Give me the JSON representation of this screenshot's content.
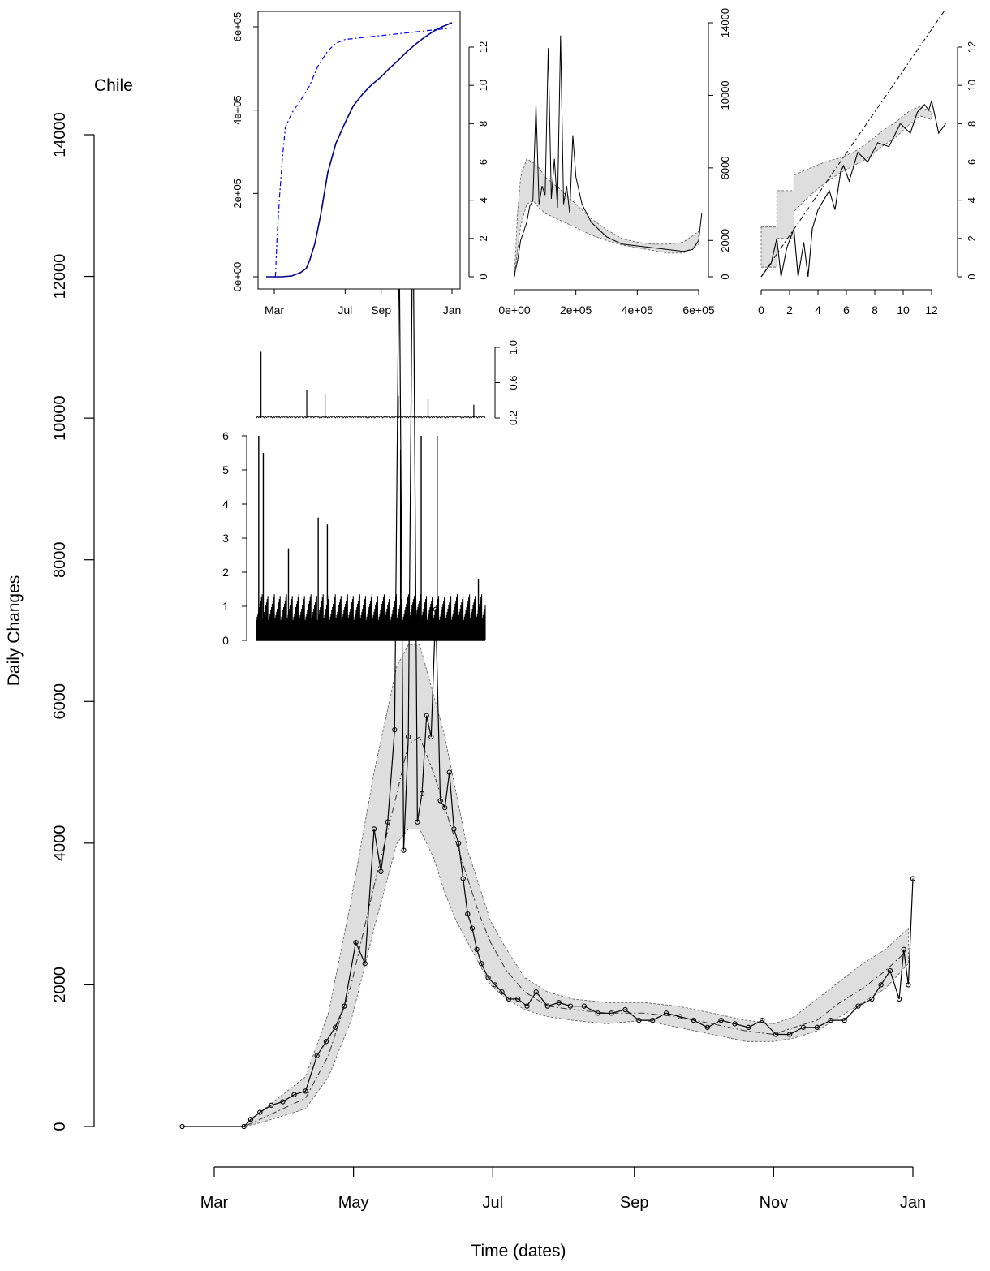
{
  "colors": {
    "background": "#ffffff",
    "axes": "#000000",
    "band_fill": "#dedede",
    "cumulative_line": "#00008b",
    "cumulative_ratio_line": "#0000ff"
  },
  "chart_data": [
    {
      "id": "main",
      "type": "scatter",
      "title": "Chile",
      "xlabel": "Time (dates)",
      "ylabel": "Daily Changes",
      "ylim": [
        0,
        14000
      ],
      "y_ticks": [
        "0",
        "2000",
        "4000",
        "6000",
        "8000",
        "10000",
        "12000",
        "14000"
      ],
      "x_ticks": [
        "Mar",
        "May",
        "Jul",
        "Sep",
        "Nov",
        "Jan"
      ],
      "x_tick_dates": [
        "2020-03-01",
        "2020-05-01",
        "2020-07-01",
        "2020-09-01",
        "2020-11-01",
        "2021-01-01"
      ],
      "xlim": [
        "2020-02-16",
        "2021-01-01"
      ],
      "grid": false,
      "series": [
        {
          "kind": "observed daily changes (points joined by line)",
          "x": [
            "2020-02-16",
            "2020-03-14",
            "2020-03-17",
            "2020-03-21",
            "2020-03-26",
            "2020-03-31",
            "2020-04-05",
            "2020-04-10",
            "2020-04-15",
            "2020-04-19",
            "2020-04-23",
            "2020-04-27",
            "2020-05-02",
            "2020-05-06",
            "2020-05-10",
            "2020-05-13",
            "2020-05-16",
            "2020-05-19",
            "2020-05-21",
            "2020-05-23",
            "2020-05-25",
            "2020-05-27",
            "2020-05-29",
            "2020-05-31",
            "2020-06-02",
            "2020-06-04",
            "2020-06-06",
            "2020-06-08",
            "2020-06-10",
            "2020-06-12",
            "2020-06-14",
            "2020-06-16",
            "2020-06-18",
            "2020-06-20",
            "2020-06-22",
            "2020-06-24",
            "2020-06-26",
            "2020-06-29",
            "2020-07-02",
            "2020-07-05",
            "2020-07-08",
            "2020-07-12",
            "2020-07-16",
            "2020-07-20",
            "2020-07-25",
            "2020-07-30",
            "2020-08-04",
            "2020-08-10",
            "2020-08-16",
            "2020-08-22",
            "2020-08-28",
            "2020-09-03",
            "2020-09-09",
            "2020-09-15",
            "2020-09-21",
            "2020-09-27",
            "2020-10-03",
            "2020-10-09",
            "2020-10-15",
            "2020-10-21",
            "2020-10-27",
            "2020-11-02",
            "2020-11-08",
            "2020-11-14",
            "2020-11-20",
            "2020-11-26",
            "2020-12-02",
            "2020-12-08",
            "2020-12-14",
            "2020-12-18",
            "2020-12-22",
            "2020-12-26",
            "2020-12-28",
            "2020-12-30",
            "2021-01-01"
          ],
          "y": [
            0,
            0,
            100,
            200,
            300,
            350,
            450,
            500,
            1000,
            1200,
            1400,
            1700,
            2600,
            2300,
            4200,
            3600,
            4300,
            5600,
            12600,
            3900,
            5500,
            13300,
            4300,
            4700,
            5800,
            5500,
            7300,
            4600,
            4500,
            5000,
            4200,
            4000,
            3500,
            3000,
            2800,
            2500,
            2300,
            2100,
            2000,
            1900,
            1800,
            1800,
            1700,
            1900,
            1700,
            1750,
            1700,
            1700,
            1600,
            1600,
            1650,
            1500,
            1500,
            1600,
            1550,
            1500,
            1400,
            1500,
            1450,
            1400,
            1500,
            1300,
            1300,
            1400,
            1400,
            1500,
            1500,
            1700,
            1800,
            2000,
            2200,
            1800,
            2500,
            2000,
            3500
          ]
        },
        {
          "kind": "model central estimate (dash-dot)",
          "x": [
            "2020-02-16",
            "2020-03-14",
            "2020-03-21",
            "2020-03-31",
            "2020-04-10",
            "2020-04-20",
            "2020-04-30",
            "2020-05-10",
            "2020-05-20",
            "2020-05-25",
            "2020-05-30",
            "2020-06-05",
            "2020-06-10",
            "2020-06-15",
            "2020-06-20",
            "2020-06-25",
            "2020-06-30",
            "2020-07-07",
            "2020-07-15",
            "2020-07-25",
            "2020-08-05",
            "2020-08-20",
            "2020-09-05",
            "2020-09-20",
            "2020-10-05",
            "2020-10-20",
            "2020-11-01",
            "2020-11-10",
            "2020-11-20",
            "2020-11-30",
            "2020-12-10",
            "2020-12-20",
            "2020-12-30"
          ],
          "y": [
            0,
            0,
            100,
            250,
            400,
            1000,
            2000,
            3400,
            4700,
            5400,
            5500,
            5000,
            4500,
            4000,
            3500,
            3000,
            2600,
            2200,
            1900,
            1700,
            1650,
            1600,
            1600,
            1550,
            1450,
            1350,
            1300,
            1400,
            1500,
            1750,
            1950,
            2200,
            2500
          ]
        }
      ],
      "band": {
        "kind": "model interval (shaded)",
        "x": [
          "2020-02-16",
          "2020-03-14",
          "2020-03-21",
          "2020-03-31",
          "2020-04-10",
          "2020-04-20",
          "2020-04-30",
          "2020-05-10",
          "2020-05-20",
          "2020-05-25",
          "2020-05-30",
          "2020-06-05",
          "2020-06-10",
          "2020-06-15",
          "2020-06-20",
          "2020-06-25",
          "2020-06-30",
          "2020-07-07",
          "2020-07-15",
          "2020-07-25",
          "2020-08-05",
          "2020-08-20",
          "2020-09-05",
          "2020-09-20",
          "2020-10-05",
          "2020-10-20",
          "2020-11-01",
          "2020-11-10",
          "2020-11-20",
          "2020-11-30",
          "2020-12-10",
          "2020-12-20",
          "2020-12-30"
        ],
        "lower": [
          0,
          0,
          50,
          150,
          250,
          700,
          1500,
          2800,
          4000,
          4200,
          4200,
          3800,
          3300,
          2900,
          2600,
          2300,
          2000,
          1800,
          1650,
          1550,
          1500,
          1450,
          1500,
          1400,
          1300,
          1200,
          1200,
          1250,
          1350,
          1550,
          1750,
          1950,
          2300
        ],
        "upper": [
          0,
          0,
          200,
          450,
          700,
          1600,
          3200,
          5000,
          6500,
          6800,
          6800,
          6100,
          5500,
          4700,
          3900,
          3400,
          2900,
          2500,
          2100,
          1900,
          1800,
          1750,
          1750,
          1700,
          1600,
          1500,
          1450,
          1550,
          1800,
          2050,
          2300,
          2500,
          2800
        ]
      }
    },
    {
      "id": "inset-cumulative",
      "type": "line",
      "left_axis": {
        "ticks": [
          "0e+00",
          "2e+05",
          "4e+05",
          "6e+05"
        ],
        "ylim": [
          0,
          630000
        ]
      },
      "right_axis": {
        "ticks": [
          "0",
          "2",
          "4",
          "6",
          "8",
          "10",
          "12"
        ],
        "ylim": [
          0,
          13
        ]
      },
      "x_ticks": [
        "Mar",
        "Jul",
        "Sep",
        "Jan"
      ],
      "series": [
        {
          "kind": "cumulative cases (solid)",
          "axis": "left",
          "x": [
            "2020-02-16",
            "2020-03-14",
            "2020-03-31",
            "2020-04-15",
            "2020-04-25",
            "2020-05-01",
            "2020-05-10",
            "2020-05-20",
            "2020-06-01",
            "2020-06-15",
            "2020-07-01",
            "2020-07-15",
            "2020-08-01",
            "2020-08-15",
            "2020-09-01",
            "2020-09-15",
            "2020-10-01",
            "2020-10-15",
            "2020-11-01",
            "2020-11-15",
            "2020-12-01",
            "2020-12-15",
            "2021-01-01"
          ],
          "y": [
            0,
            0,
            2000,
            10000,
            20000,
            40000,
            80000,
            150000,
            250000,
            320000,
            370000,
            410000,
            440000,
            460000,
            480000,
            500000,
            520000,
            540000,
            560000,
            575000,
            590000,
            600000,
            610000
          ]
        },
        {
          "kind": "log cumulative (dash-dot)",
          "axis": "right",
          "x": [
            "2020-03-03",
            "2020-03-06",
            "2020-03-10",
            "2020-03-15",
            "2020-03-20",
            "2020-04-01",
            "2020-04-15",
            "2020-05-01",
            "2020-05-15",
            "2020-06-01",
            "2020-06-15",
            "2020-07-01",
            "2020-08-01",
            "2020-09-01",
            "2020-10-01",
            "2020-11-01",
            "2020-12-01",
            "2021-01-01"
          ],
          "y": [
            0,
            2.2,
            4.2,
            6.2,
            7.8,
            8.6,
            9.2,
            10.0,
            11.0,
            11.8,
            12.2,
            12.4,
            12.5,
            12.6,
            12.7,
            12.8,
            12.9,
            13.0
          ]
        }
      ]
    },
    {
      "id": "inset-daily-vs-cumulative",
      "type": "line",
      "x_ticks": [
        "0e+00",
        "2e+05",
        "4e+05",
        "6e+05"
      ],
      "xlim": [
        0,
        610000
      ],
      "right_axis": {
        "ticks": [
          "0",
          "2000",
          "6000",
          "10000",
          "14000"
        ],
        "ylim": [
          0,
          14000
        ]
      },
      "series": [
        {
          "kind": "daily changes vs cumulative (solid)",
          "x": [
            0,
            2000,
            5000,
            10000,
            20000,
            30000,
            40000,
            50000,
            60000,
            70000,
            80000,
            90000,
            100000,
            110000,
            120000,
            130000,
            140000,
            150000,
            160000,
            170000,
            180000,
            190000,
            200000,
            220000,
            250000,
            300000,
            350000,
            400000,
            450000,
            500000,
            550000,
            580000,
            600000,
            610000
          ],
          "y": [
            0,
            300,
            500,
            900,
            2000,
            2500,
            3000,
            3900,
            4200,
            9500,
            4000,
            5000,
            4500,
            12600,
            4300,
            6500,
            3800,
            13300,
            4000,
            5000,
            3500,
            7800,
            5500,
            4000,
            3000,
            2200,
            1800,
            1700,
            1600,
            1500,
            1400,
            1500,
            2000,
            3500
          ]
        }
      ],
      "band": {
        "x": [
          0,
          10000,
          20000,
          40000,
          60000,
          80000,
          100000,
          150000,
          200000,
          250000,
          300000,
          350000,
          400000,
          450000,
          500000,
          550000,
          600000
        ],
        "lower": [
          0,
          1500,
          2800,
          4000,
          4200,
          3800,
          3500,
          3100,
          2700,
          2300,
          2000,
          1750,
          1600,
          1450,
          1300,
          1300,
          1800
        ],
        "upper": [
          200,
          3500,
          5500,
          6500,
          6300,
          6000,
          5500,
          4800,
          4000,
          3200,
          2600,
          2100,
          1900,
          1800,
          1800,
          1900,
          2500
        ]
      }
    },
    {
      "id": "inset-log-log",
      "type": "line",
      "x_ticks": [
        "0",
        "2",
        "4",
        "6",
        "8",
        "10",
        "12"
      ],
      "xlim": [
        0,
        13
      ],
      "right_axis": {
        "ticks": [
          "0",
          "2",
          "4",
          "6",
          "8",
          "10",
          "12"
        ],
        "ylim": [
          0,
          13
        ]
      },
      "series": [
        {
          "kind": "log daily vs log cumulative (solid)",
          "x": [
            0,
            0.7,
            1.1,
            1.4,
            1.8,
            2.3,
            2.6,
            3.0,
            3.3,
            3.6,
            4.0,
            4.4,
            4.8,
            5.2,
            5.6,
            5.8,
            6.2,
            6.8,
            7.5,
            8.2,
            9.0,
            9.8,
            10.5,
            11.0,
            11.5,
            11.8,
            12.0,
            12.5,
            13.0
          ],
          "y": [
            0,
            0.7,
            2.0,
            0,
            1.5,
            2.5,
            0,
            1.8,
            0,
            2.5,
            3.5,
            4.0,
            4.5,
            3.5,
            5.5,
            5.8,
            5.0,
            6.5,
            6.0,
            7.0,
            6.8,
            8.0,
            7.5,
            8.6,
            9.0,
            8.7,
            9.2,
            7.5,
            8.0
          ]
        },
        {
          "kind": "identity reference (dash-dot)",
          "x": [
            0,
            13
          ],
          "y": [
            0,
            14
          ]
        }
      ],
      "band": {
        "x": [
          0,
          1.1,
          1.1,
          2.3,
          2.3,
          3.5,
          4.5,
          5.5,
          6.5,
          7.5,
          8.5,
          9.5,
          10.5,
          11.2,
          12.0
        ],
        "lower": [
          0.5,
          0.5,
          2.0,
          2.0,
          3.4,
          4.3,
          4.9,
          5.4,
          5.8,
          6.2,
          6.8,
          7.3,
          8.0,
          8.4,
          8.2
        ],
        "upper": [
          2.6,
          2.6,
          4.5,
          4.5,
          5.3,
          5.7,
          6.0,
          6.2,
          6.5,
          7.0,
          7.6,
          8.1,
          8.7,
          8.9,
          8.6
        ]
      }
    },
    {
      "id": "inset-ratio",
      "type": "line",
      "right_axis": {
        "ticks": [
          "0.2",
          "0.6",
          "1.0"
        ],
        "ylim": [
          0.2,
          1.0
        ]
      },
      "series": [
        {
          "kind": "day-over-day ratio (solid)",
          "n_points": 320,
          "baseline": 0.2,
          "spikes": [
            [
              0.02,
              0.95
            ],
            [
              0.22,
              0.52
            ],
            [
              0.3,
              0.48
            ],
            [
              0.62,
              0.45
            ],
            [
              0.75,
              0.42
            ],
            [
              0.95,
              0.35
            ]
          ]
        }
      ]
    },
    {
      "id": "inset-histogram",
      "type": "bar",
      "left_axis": {
        "ticks": [
          "0",
          "1",
          "2",
          "3",
          "4",
          "5",
          "6"
        ],
        "ylim": [
          0,
          6
        ]
      },
      "series": [
        {
          "kind": "dense vertical bars",
          "n_bars": 320,
          "spikes": [
            [
              0.01,
              6.0
            ],
            [
              0.03,
              5.5
            ],
            [
              0.14,
              2.7
            ],
            [
              0.27,
              3.6
            ],
            [
              0.31,
              3.4
            ],
            [
              0.63,
              5.6
            ],
            [
              0.72,
              6.0
            ],
            [
              0.79,
              6.0
            ],
            [
              0.97,
              1.8
            ]
          ]
        }
      ]
    }
  ]
}
